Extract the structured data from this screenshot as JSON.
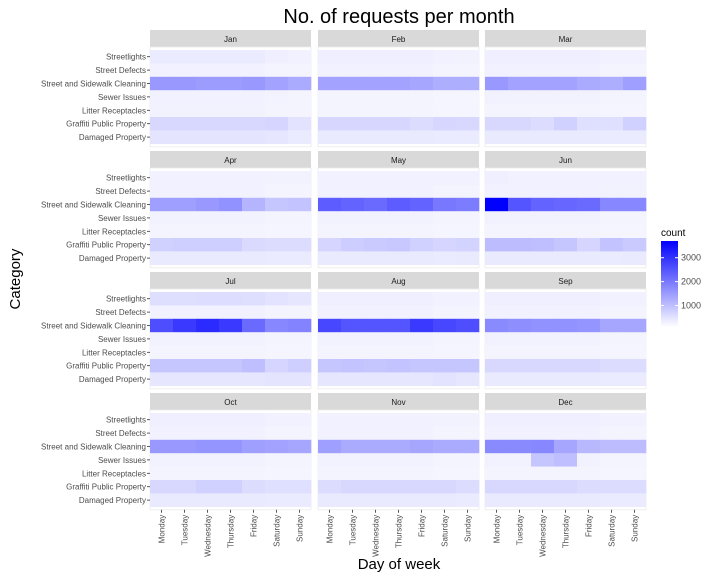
{
  "chart_data": {
    "type": "heatmap",
    "title": "No. of requests per month",
    "xlabel": "Day of week",
    "ylabel": "Category",
    "x_categories": [
      "Monday",
      "Tuesday",
      "Wednesday",
      "Thursday",
      "Friday",
      "Saturday",
      "Sunday"
    ],
    "y_categories": [
      "Streetlights",
      "Street Defects",
      "Street and Sidewalk Cleaning",
      "Sewer Issues",
      "Litter Receptacles",
      "Graffiti Public Property",
      "Damaged Property"
    ],
    "facet_rows": 4,
    "facet_cols": 3,
    "colors": {
      "low": "#ffffff",
      "high": "#0000ff",
      "strip_bg": "#d9d9d9",
      "panel_bg": "#ffffff",
      "grid": "#ebebeb"
    },
    "legend": {
      "title": "count",
      "position": "right",
      "ticks": [
        1000,
        2000,
        3000
      ],
      "min": 100,
      "max": 3700
    },
    "value_range": [
      100,
      3700
    ],
    "facets": [
      {
        "month": "Jan",
        "values": [
          [
            380,
            380,
            380,
            380,
            380,
            330,
            300
          ],
          [
            300,
            300,
            300,
            300,
            300,
            260,
            260
          ],
          [
            1550,
            1550,
            1500,
            1500,
            1550,
            1400,
            1300
          ],
          [
            300,
            300,
            300,
            300,
            300,
            270,
            260
          ],
          [
            280,
            280,
            280,
            280,
            280,
            260,
            250
          ],
          [
            650,
            650,
            650,
            650,
            650,
            700,
            500
          ],
          [
            480,
            480,
            480,
            480,
            480,
            450,
            380
          ]
        ]
      },
      {
        "month": "Feb",
        "values": [
          [
            330,
            330,
            330,
            330,
            330,
            300,
            290
          ],
          [
            300,
            300,
            300,
            300,
            300,
            260,
            260
          ],
          [
            1400,
            1400,
            1400,
            1400,
            1350,
            1250,
            1250
          ],
          [
            260,
            260,
            260,
            260,
            260,
            240,
            240
          ],
          [
            260,
            260,
            260,
            260,
            260,
            240,
            240
          ],
          [
            680,
            680,
            680,
            680,
            600,
            680,
            650
          ],
          [
            400,
            400,
            400,
            400,
            400,
            380,
            380
          ]
        ]
      },
      {
        "month": "Mar",
        "values": [
          [
            330,
            330,
            330,
            330,
            330,
            300,
            300
          ],
          [
            300,
            300,
            300,
            300,
            300,
            260,
            260
          ],
          [
            1550,
            1400,
            1400,
            1400,
            1300,
            1250,
            1450
          ],
          [
            290,
            290,
            290,
            290,
            290,
            260,
            260
          ],
          [
            260,
            260,
            260,
            260,
            260,
            240,
            240
          ],
          [
            650,
            650,
            600,
            750,
            550,
            550,
            750
          ],
          [
            400,
            400,
            400,
            400,
            400,
            380,
            380
          ]
        ]
      },
      {
        "month": "Apr",
        "values": [
          [
            300,
            300,
            300,
            300,
            300,
            280,
            280
          ],
          [
            300,
            300,
            300,
            300,
            300,
            260,
            260
          ],
          [
            1450,
            1450,
            1550,
            1650,
            1150,
            900,
            950
          ],
          [
            290,
            290,
            290,
            290,
            290,
            260,
            260
          ],
          [
            260,
            260,
            260,
            260,
            260,
            240,
            240
          ],
          [
            750,
            780,
            780,
            780,
            620,
            600,
            600
          ],
          [
            400,
            400,
            400,
            400,
            400,
            380,
            380
          ]
        ]
      },
      {
        "month": "May",
        "values": [
          [
            300,
            300,
            300,
            300,
            300,
            300,
            300
          ],
          [
            300,
            300,
            300,
            300,
            300,
            260,
            260
          ],
          [
            2400,
            2300,
            2200,
            2400,
            2300,
            2000,
            1950
          ],
          [
            290,
            290,
            290,
            290,
            290,
            260,
            260
          ],
          [
            260,
            260,
            260,
            260,
            260,
            240,
            240
          ],
          [
            700,
            800,
            850,
            880,
            750,
            700,
            720
          ],
          [
            400,
            400,
            400,
            400,
            400,
            380,
            400
          ]
        ]
      },
      {
        "month": "Jun",
        "values": [
          [
            330,
            300,
            300,
            300,
            300,
            300,
            300
          ],
          [
            300,
            300,
            300,
            300,
            300,
            280,
            280
          ],
          [
            3700,
            2500,
            2300,
            2250,
            2200,
            1800,
            1800
          ],
          [
            290,
            290,
            290,
            290,
            290,
            260,
            260
          ],
          [
            260,
            260,
            260,
            260,
            260,
            240,
            240
          ],
          [
            1050,
            1050,
            1000,
            900,
            700,
            950,
            850
          ],
          [
            400,
            400,
            400,
            400,
            400,
            380,
            400
          ]
        ]
      },
      {
        "month": "Jul",
        "values": [
          [
            560,
            560,
            580,
            580,
            560,
            500,
            450
          ],
          [
            300,
            300,
            300,
            300,
            300,
            260,
            260
          ],
          [
            2600,
            2900,
            3100,
            2900,
            2200,
            1800,
            1850
          ],
          [
            290,
            290,
            290,
            290,
            290,
            260,
            260
          ],
          [
            260,
            260,
            260,
            260,
            260,
            240,
            240
          ],
          [
            900,
            900,
            900,
            900,
            1000,
            700,
            780
          ],
          [
            450,
            450,
            450,
            450,
            450,
            480,
            480
          ]
        ]
      },
      {
        "month": "Aug",
        "values": [
          [
            330,
            330,
            330,
            330,
            330,
            300,
            300
          ],
          [
            300,
            300,
            300,
            300,
            300,
            260,
            260
          ],
          [
            2700,
            2500,
            2500,
            2500,
            2900,
            2700,
            2600
          ],
          [
            290,
            290,
            290,
            290,
            290,
            260,
            260
          ],
          [
            260,
            260,
            260,
            260,
            260,
            240,
            240
          ],
          [
            900,
            950,
            900,
            950,
            900,
            900,
            900
          ],
          [
            450,
            450,
            450,
            450,
            450,
            500,
            450
          ]
        ]
      },
      {
        "month": "Sep",
        "values": [
          [
            330,
            330,
            330,
            330,
            330,
            300,
            300
          ],
          [
            300,
            300,
            300,
            300,
            300,
            260,
            260
          ],
          [
            1750,
            1700,
            1650,
            1650,
            1600,
            1350,
            1350
          ],
          [
            290,
            290,
            290,
            290,
            290,
            260,
            260
          ],
          [
            260,
            260,
            260,
            260,
            260,
            240,
            240
          ],
          [
            650,
            650,
            650,
            650,
            650,
            600,
            600
          ],
          [
            400,
            400,
            400,
            400,
            400,
            380,
            380
          ]
        ]
      },
      {
        "month": "Oct",
        "values": [
          [
            330,
            330,
            330,
            330,
            330,
            300,
            300
          ],
          [
            300,
            300,
            300,
            300,
            300,
            260,
            260
          ],
          [
            1550,
            1550,
            1600,
            1600,
            1450,
            1400,
            1350
          ],
          [
            290,
            290,
            290,
            290,
            290,
            260,
            260
          ],
          [
            260,
            260,
            260,
            260,
            260,
            240,
            240
          ],
          [
            650,
            650,
            750,
            750,
            600,
            550,
            550
          ],
          [
            400,
            400,
            400,
            400,
            400,
            380,
            380
          ]
        ]
      },
      {
        "month": "Nov",
        "values": [
          [
            300,
            300,
            300,
            300,
            300,
            280,
            280
          ],
          [
            300,
            300,
            300,
            300,
            300,
            260,
            260
          ],
          [
            1450,
            1300,
            1300,
            1300,
            1350,
            1300,
            1300
          ],
          [
            290,
            290,
            290,
            290,
            290,
            260,
            260
          ],
          [
            260,
            260,
            260,
            260,
            260,
            240,
            240
          ],
          [
            600,
            650,
            650,
            650,
            650,
            650,
            600
          ],
          [
            400,
            400,
            400,
            400,
            400,
            400,
            380
          ]
        ]
      },
      {
        "month": "Dec",
        "values": [
          [
            330,
            330,
            330,
            330,
            330,
            300,
            300
          ],
          [
            300,
            300,
            300,
            300,
            300,
            260,
            260
          ],
          [
            1750,
            1750,
            1800,
            1350,
            1100,
            1050,
            1050
          ],
          [
            290,
            290,
            900,
            1000,
            290,
            260,
            260
          ],
          [
            260,
            260,
            260,
            260,
            260,
            240,
            240
          ],
          [
            650,
            650,
            650,
            650,
            600,
            600,
            600
          ],
          [
            400,
            400,
            400,
            400,
            400,
            380,
            380
          ]
        ]
      }
    ]
  }
}
